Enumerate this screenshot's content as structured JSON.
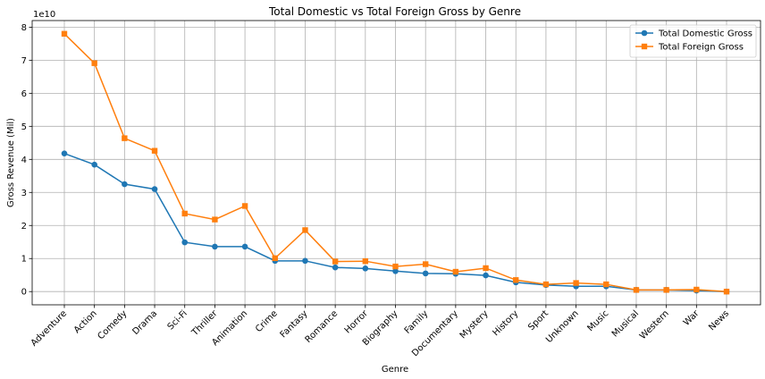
{
  "chart_data": {
    "type": "line",
    "title": "Total Domestic vs Total Foreign Gross by Genre",
    "xlabel": "Genre",
    "ylabel": "Gross Revenue (Mil)",
    "y_offset_text": "1e10",
    "y_unit_multiplier": 10000000000,
    "ylim": [
      -0.4,
      8.2
    ],
    "yticks": [
      0,
      1,
      2,
      3,
      4,
      5,
      6,
      7,
      8
    ],
    "grid": true,
    "legend_position": "top-right",
    "categories": [
      "Adventure",
      "Action",
      "Comedy",
      "Drama",
      "Sci-Fi",
      "Thriller",
      "Animation",
      "Crime",
      "Fantasy",
      "Romance",
      "Horror",
      "Biography",
      "Family",
      "Documentary",
      "Mystery",
      "History",
      "Sport",
      "Unknown",
      "Music",
      "Musical",
      "Western",
      "War",
      "News"
    ],
    "series": [
      {
        "name": "Total Domestic Gross",
        "color": "#1f77b4",
        "marker": "circle",
        "values": [
          4.18,
          3.84,
          3.25,
          3.1,
          1.49,
          1.36,
          1.36,
          0.93,
          0.93,
          0.73,
          0.7,
          0.62,
          0.55,
          0.54,
          0.49,
          0.28,
          0.2,
          0.16,
          0.16,
          0.05,
          0.05,
          0.03,
          0.0
        ]
      },
      {
        "name": "Total Foreign Gross",
        "color": "#ff7f0e",
        "marker": "square",
        "values": [
          7.8,
          6.91,
          4.64,
          4.26,
          2.36,
          2.18,
          2.59,
          1.01,
          1.86,
          0.91,
          0.92,
          0.76,
          0.83,
          0.6,
          0.71,
          0.35,
          0.22,
          0.26,
          0.22,
          0.05,
          0.05,
          0.06,
          0.0
        ]
      }
    ]
  }
}
